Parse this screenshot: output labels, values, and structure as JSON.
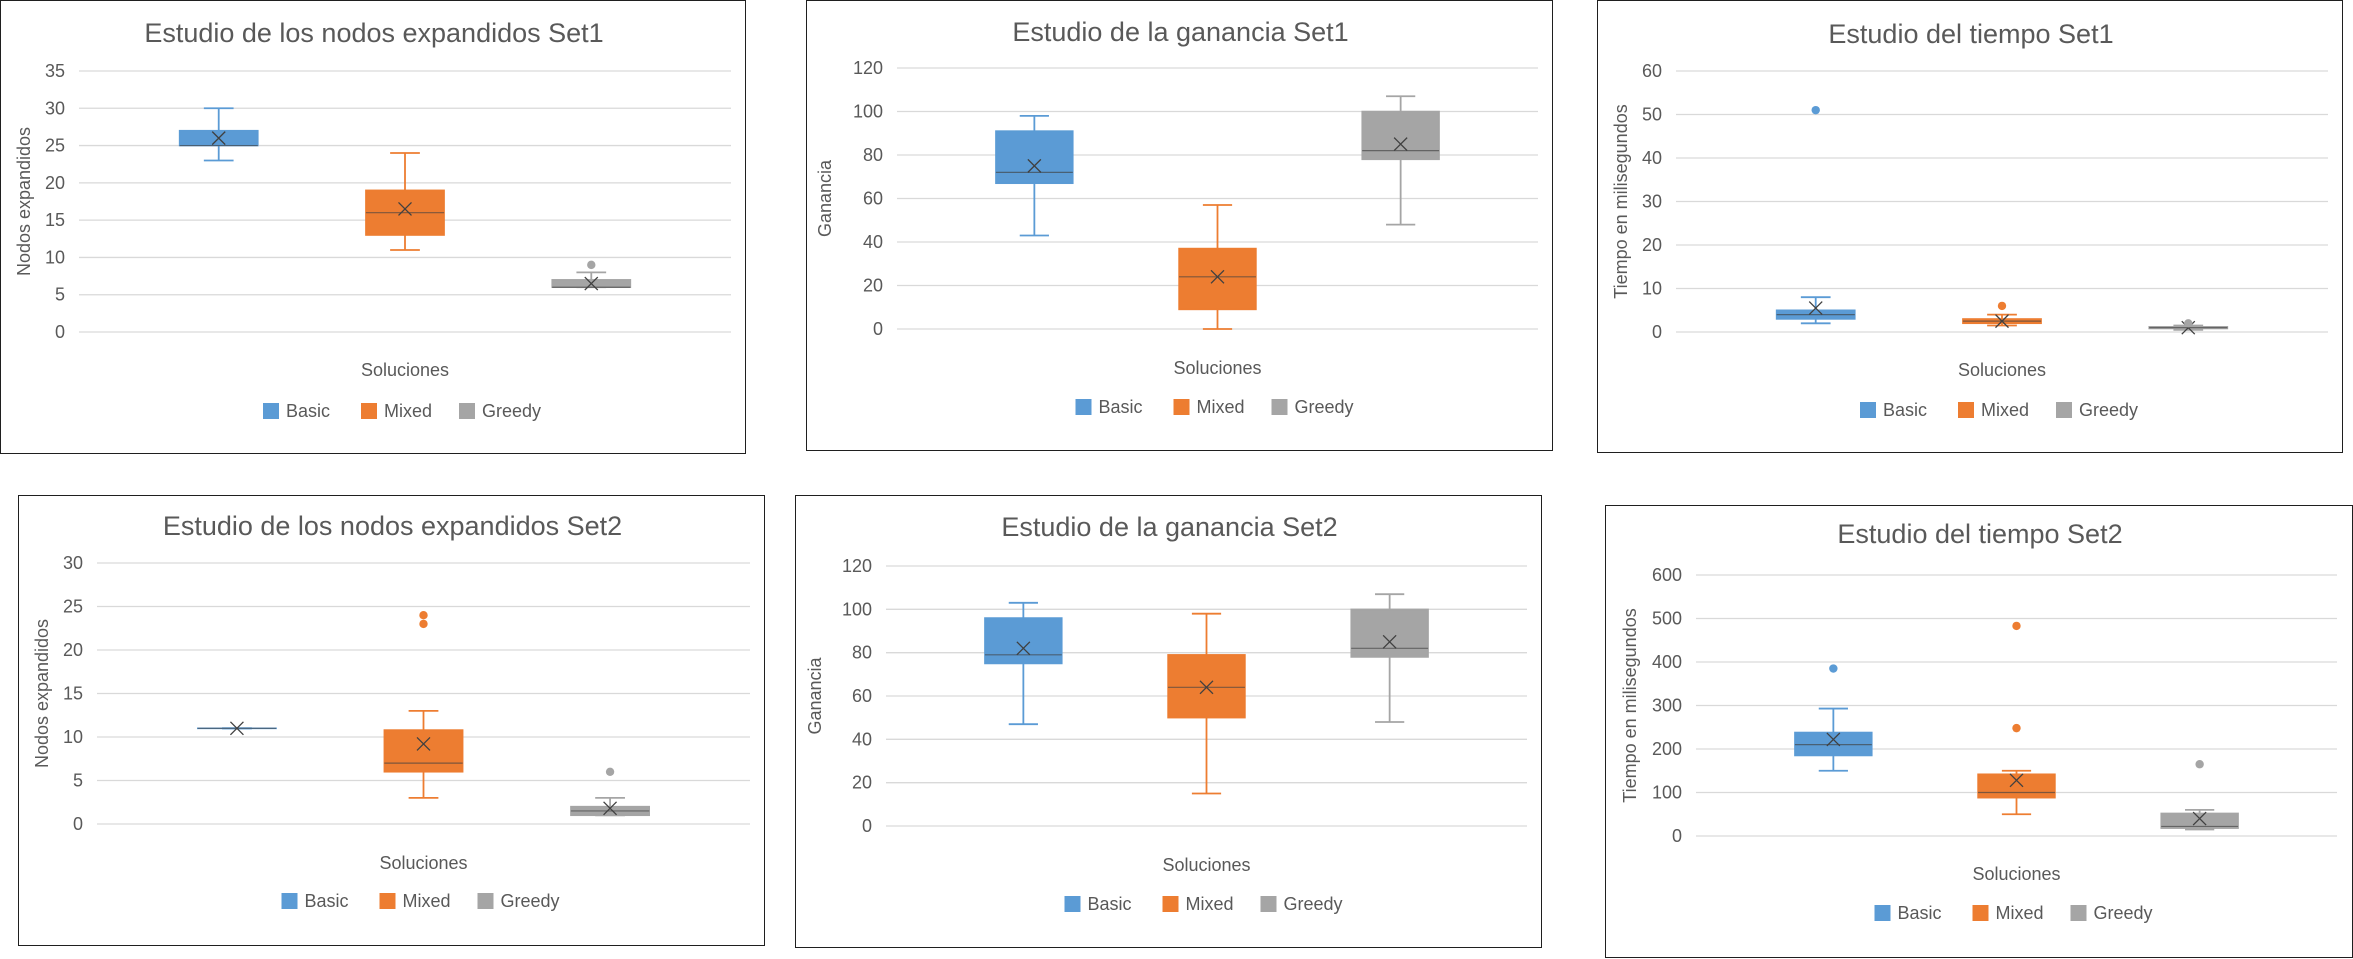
{
  "colors": {
    "Basic": "#5b9bd5",
    "Mixed": "#ed7d31",
    "Greedy": "#a5a5a5"
  },
  "chart_data": [
    {
      "type": "box",
      "title": "Estudio de los nodos expandidos Set1",
      "xlabel": "Soluciones",
      "ylabel": "Nodos expandidos",
      "ylim": [
        0,
        35
      ],
      "ystep": 5,
      "legend": "bottom",
      "grid": true,
      "series": [
        {
          "name": "Basic",
          "min": 23,
          "q1": 25,
          "median": 25,
          "q3": 27,
          "max": 30,
          "mean": 26,
          "outliers": []
        },
        {
          "name": "Mixed",
          "min": 11,
          "q1": 13,
          "median": 16,
          "q3": 19,
          "max": 24,
          "mean": 16.5,
          "outliers": []
        },
        {
          "name": "Greedy",
          "min": 6,
          "q1": 6,
          "median": 6,
          "q3": 7,
          "max": 8,
          "mean": 6.5,
          "outliers": [
            9
          ]
        }
      ]
    },
    {
      "type": "box",
      "title": "Estudio de la ganancia Set1",
      "xlabel": "Soluciones",
      "ylabel": "Ganancia",
      "ylim": [
        0,
        120
      ],
      "ystep": 20,
      "legend": "bottom",
      "grid": true,
      "series": [
        {
          "name": "Basic",
          "min": 43,
          "q1": 67,
          "median": 72,
          "q3": 91,
          "max": 98,
          "mean": 75,
          "outliers": []
        },
        {
          "name": "Mixed",
          "min": 0,
          "q1": 9,
          "median": 24,
          "q3": 37,
          "max": 57,
          "mean": 24,
          "outliers": []
        },
        {
          "name": "Greedy",
          "min": 48,
          "q1": 78,
          "median": 82,
          "q3": 100,
          "max": 107,
          "mean": 85,
          "outliers": []
        }
      ]
    },
    {
      "type": "box",
      "title": "Estudio del tiempo Set1",
      "xlabel": "Soluciones",
      "ylabel": "Tiempo en milisegundos",
      "ylim": [
        0,
        60
      ],
      "ystep": 10,
      "legend": "bottom",
      "grid": true,
      "series": [
        {
          "name": "Basic",
          "min": 2,
          "q1": 3,
          "median": 4,
          "q3": 5,
          "max": 8,
          "mean": 5.5,
          "outliers": [
            51
          ]
        },
        {
          "name": "Mixed",
          "min": 1.5,
          "q1": 2,
          "median": 2.5,
          "q3": 3,
          "max": 4,
          "mean": 2.5,
          "outliers": [
            6
          ]
        },
        {
          "name": "Greedy",
          "min": 0.5,
          "q1": 0.8,
          "median": 1,
          "q3": 1.2,
          "max": 1.5,
          "mean": 1,
          "outliers": [
            2
          ]
        }
      ]
    },
    {
      "type": "box",
      "title": "Estudio de los nodos expandidos Set2",
      "xlabel": "Soluciones",
      "ylabel": "Nodos expandidos",
      "ylim": [
        0,
        30
      ],
      "ystep": 5,
      "legend": "bottom",
      "grid": true,
      "series": [
        {
          "name": "Basic",
          "min": 11,
          "q1": 11,
          "median": 11,
          "q3": 11,
          "max": 11,
          "mean": 11,
          "outliers": []
        },
        {
          "name": "Mixed",
          "min": 3,
          "q1": 6,
          "median": 7,
          "q3": 10.8,
          "max": 13,
          "mean": 9.2,
          "outliers": [
            23,
            24
          ]
        },
        {
          "name": "Greedy",
          "min": 1,
          "q1": 1,
          "median": 1.5,
          "q3": 2,
          "max": 3,
          "mean": 1.8,
          "outliers": [
            6
          ]
        }
      ]
    },
    {
      "type": "box",
      "title": "Estudio de la ganancia Set2",
      "xlabel": "Soluciones",
      "ylabel": "Ganancia",
      "ylim": [
        0,
        120
      ],
      "ystep": 20,
      "legend": "bottom",
      "grid": true,
      "series": [
        {
          "name": "Basic",
          "min": 47,
          "q1": 75,
          "median": 79,
          "q3": 96,
          "max": 103,
          "mean": 82,
          "outliers": []
        },
        {
          "name": "Mixed",
          "min": 15,
          "q1": 50,
          "median": 64,
          "q3": 79,
          "max": 98,
          "mean": 64,
          "outliers": []
        },
        {
          "name": "Greedy",
          "min": 48,
          "q1": 78,
          "median": 82,
          "q3": 100,
          "max": 107,
          "mean": 85,
          "outliers": []
        }
      ]
    },
    {
      "type": "box",
      "title": "Estudio del tiempo Set2",
      "xlabel": "Soluciones",
      "ylabel": "Tiempo en milisegundos",
      "ylim": [
        0,
        600
      ],
      "ystep": 100,
      "legend": "bottom",
      "grid": true,
      "series": [
        {
          "name": "Basic",
          "min": 150,
          "q1": 185,
          "median": 210,
          "q3": 238,
          "max": 293,
          "mean": 222,
          "outliers": [
            385
          ]
        },
        {
          "name": "Mixed",
          "min": 50,
          "q1": 88,
          "median": 100,
          "q3": 142,
          "max": 150,
          "mean": 128,
          "outliers": [
            248,
            483
          ]
        },
        {
          "name": "Greedy",
          "min": 15,
          "q1": 18,
          "median": 22,
          "q3": 52,
          "max": 60,
          "mean": 40,
          "outliers": [
            165
          ]
        }
      ]
    }
  ]
}
